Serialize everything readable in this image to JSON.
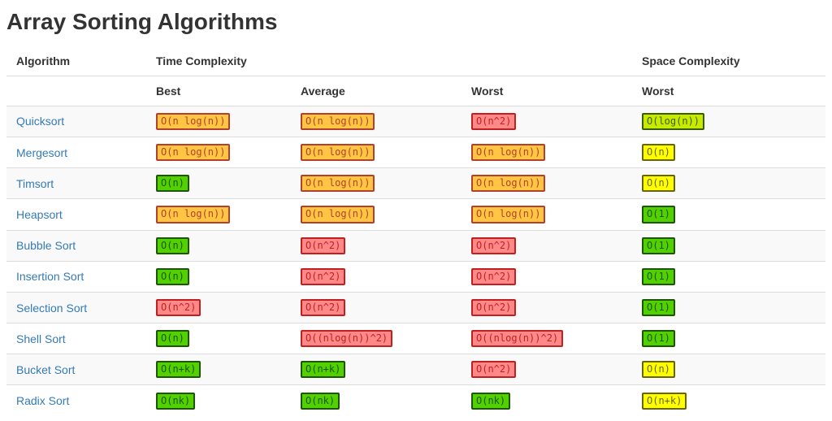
{
  "page": {
    "title": "Array Sorting Algorithms"
  },
  "table": {
    "header_groups": {
      "algorithm": "Algorithm",
      "time_complexity": "Time Complexity",
      "space_complexity": "Space Complexity"
    },
    "subheaders": {
      "best": "Best",
      "average": "Average",
      "worst": "Worst",
      "space_worst": "Worst"
    },
    "rows": [
      {
        "name": "Quicksort",
        "best": {
          "text": "O(n log(n))",
          "rating": "bad"
        },
        "average": {
          "text": "O(n log(n))",
          "rating": "bad"
        },
        "worst": {
          "text": "O(n^2)",
          "rating": "horrible"
        },
        "space": {
          "text": "O(log(n))",
          "rating": "good"
        }
      },
      {
        "name": "Mergesort",
        "best": {
          "text": "O(n log(n))",
          "rating": "bad"
        },
        "average": {
          "text": "O(n log(n))",
          "rating": "bad"
        },
        "worst": {
          "text": "O(n log(n))",
          "rating": "bad"
        },
        "space": {
          "text": "O(n)",
          "rating": "fair"
        }
      },
      {
        "name": "Timsort",
        "best": {
          "text": "O(n)",
          "rating": "excellent"
        },
        "average": {
          "text": "O(n log(n))",
          "rating": "bad"
        },
        "worst": {
          "text": "O(n log(n))",
          "rating": "bad"
        },
        "space": {
          "text": "O(n)",
          "rating": "fair"
        }
      },
      {
        "name": "Heapsort",
        "best": {
          "text": "O(n log(n))",
          "rating": "bad"
        },
        "average": {
          "text": "O(n log(n))",
          "rating": "bad"
        },
        "worst": {
          "text": "O(n log(n))",
          "rating": "bad"
        },
        "space": {
          "text": "O(1)",
          "rating": "excellent"
        }
      },
      {
        "name": "Bubble Sort",
        "best": {
          "text": "O(n)",
          "rating": "excellent"
        },
        "average": {
          "text": "O(n^2)",
          "rating": "horrible"
        },
        "worst": {
          "text": "O(n^2)",
          "rating": "horrible"
        },
        "space": {
          "text": "O(1)",
          "rating": "excellent"
        }
      },
      {
        "name": "Insertion Sort",
        "best": {
          "text": "O(n)",
          "rating": "excellent"
        },
        "average": {
          "text": "O(n^2)",
          "rating": "horrible"
        },
        "worst": {
          "text": "O(n^2)",
          "rating": "horrible"
        },
        "space": {
          "text": "O(1)",
          "rating": "excellent"
        }
      },
      {
        "name": "Selection Sort",
        "best": {
          "text": "O(n^2)",
          "rating": "horrible"
        },
        "average": {
          "text": "O(n^2)",
          "rating": "horrible"
        },
        "worst": {
          "text": "O(n^2)",
          "rating": "horrible"
        },
        "space": {
          "text": "O(1)",
          "rating": "excellent"
        }
      },
      {
        "name": "Shell Sort",
        "best": {
          "text": "O(n)",
          "rating": "excellent"
        },
        "average": {
          "text": "O((nlog(n))^2)",
          "rating": "horrible"
        },
        "worst": {
          "text": "O((nlog(n))^2)",
          "rating": "horrible"
        },
        "space": {
          "text": "O(1)",
          "rating": "excellent"
        }
      },
      {
        "name": "Bucket Sort",
        "best": {
          "text": "O(n+k)",
          "rating": "excellent"
        },
        "average": {
          "text": "O(n+k)",
          "rating": "excellent"
        },
        "worst": {
          "text": "O(n^2)",
          "rating": "horrible"
        },
        "space": {
          "text": "O(n)",
          "rating": "fair"
        }
      },
      {
        "name": "Radix Sort",
        "best": {
          "text": "O(nk)",
          "rating": "excellent"
        },
        "average": {
          "text": "O(nk)",
          "rating": "excellent"
        },
        "worst": {
          "text": "O(nk)",
          "rating": "excellent"
        },
        "space": {
          "text": "O(n+k)",
          "rating": "fair"
        }
      }
    ]
  },
  "colors": {
    "link": "#337ab7",
    "title_text": "#333333",
    "header_text": "#333333",
    "row_stripe": "#f9f9f9",
    "table_border": "#dddddd",
    "ratings": {
      "excellent": {
        "bg": "#53d000",
        "border": "#2f7e00",
        "text": "#1c5700"
      },
      "good": {
        "bg": "#c8ea00",
        "border": "#4c7c0b",
        "text": "#3a5f00"
      },
      "fair": {
        "bg": "#ffff00",
        "border": "#c9c900",
        "text": "#666600"
      },
      "bad": {
        "bg": "#ffc543",
        "border": "#9c2b1f",
        "text": "#b2402c"
      },
      "horrible": {
        "bg": "#ff8989",
        "border": "#e05656",
        "text": "#c02020"
      }
    }
  }
}
